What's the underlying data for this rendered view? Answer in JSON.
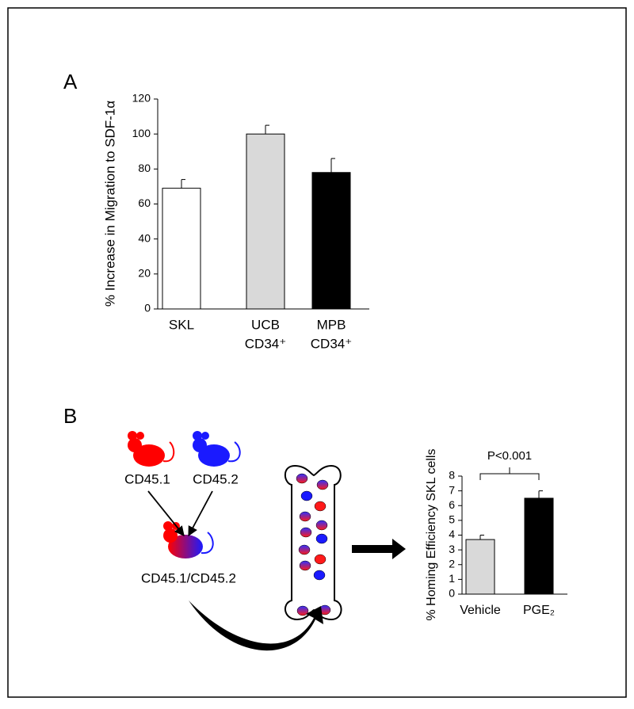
{
  "chart_data": [
    {
      "type": "bar",
      "label": "A",
      "ylabel": "% Increase in Migration to SDF-1α",
      "categories": [
        [
          "SKL"
        ],
        [
          "UCB",
          "CD34⁺"
        ],
        [
          "MPB",
          "CD34⁺"
        ]
      ],
      "values": [
        69,
        100,
        78
      ],
      "errors": [
        5,
        5,
        8
      ],
      "colors": [
        "#ffffff",
        "#d9d9d9",
        "#000000"
      ],
      "ylim": [
        0,
        120
      ],
      "yticks": [
        0,
        20,
        40,
        60,
        80,
        100,
        120
      ]
    },
    {
      "type": "bar",
      "label": "B",
      "ylabel": "% Homing Efficiency SKL cells",
      "categories": [
        [
          "Vehicle"
        ],
        [
          "PGE₂"
        ]
      ],
      "values": [
        3.7,
        6.5
      ],
      "errors": [
        0.3,
        0.5
      ],
      "colors": [
        "#d9d9d9",
        "#000000"
      ],
      "ylim": [
        0,
        8
      ],
      "yticks": [
        0,
        1,
        2,
        3,
        4,
        5,
        6,
        7,
        8
      ],
      "annotation": "P<0.001"
    }
  ],
  "diagram": {
    "nodes": [
      {
        "label": "CD45.1"
      },
      {
        "label": "CD45.2"
      },
      {
        "label": "CD45.1/CD45.2"
      }
    ]
  }
}
